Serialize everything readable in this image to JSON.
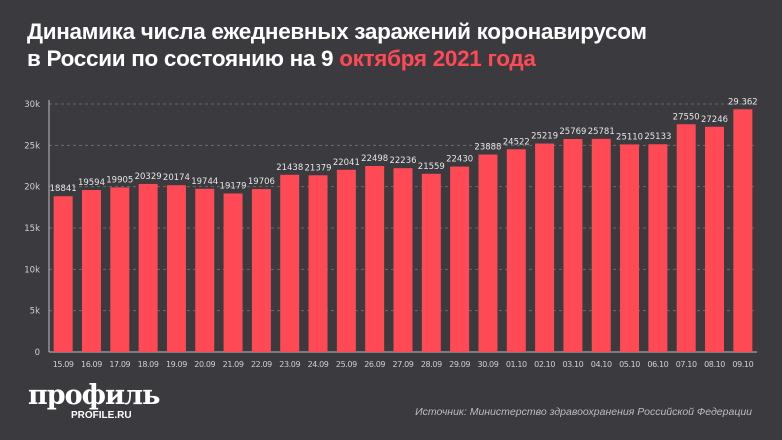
{
  "title": {
    "line1": "Динамика числа ежедневных заражений коронавирусом",
    "line2_prefix": "в России по состоянию на 9 ",
    "line2_highlight": "октября 2021 года"
  },
  "colors": {
    "background": "#3b3a3f",
    "bar": "#ff4a55",
    "highlight": "#ff4a55"
  },
  "chart_data": {
    "type": "bar",
    "categories": [
      "15.09",
      "16.09",
      "17.09",
      "18.09",
      "19.09",
      "20.09",
      "21.09",
      "22.09",
      "23.09",
      "24.09",
      "25.09",
      "26.09",
      "27.09",
      "28.09",
      "29.09",
      "30.09",
      "01.10",
      "02.10",
      "03.10",
      "04.10",
      "05.10",
      "06.10",
      "07.10",
      "08.10",
      "09.10"
    ],
    "values": [
      18841,
      19594,
      19905,
      20329,
      20174,
      19744,
      19179,
      19706,
      21438,
      21379,
      22041,
      22498,
      22236,
      21559,
      22430,
      23888,
      24522,
      25219,
      25769,
      25781,
      25110,
      25133,
      27550,
      27246,
      29362
    ],
    "data_labels": [
      "18841",
      "19594",
      "19905",
      "20329",
      "20174",
      "19744",
      "19179",
      "19706",
      "21438",
      "21379",
      "22041",
      "22498",
      "22236",
      "21559",
      "22430",
      "23888",
      "24522",
      "25219",
      "25769",
      "25781",
      "25110",
      "25133",
      "27550",
      "27246",
      "29 362"
    ],
    "ylim": [
      0,
      30000
    ],
    "yticks": [
      0,
      5000,
      10000,
      15000,
      20000,
      25000,
      30000
    ],
    "ytick_labels": [
      "0",
      "5k",
      "10k",
      "15k",
      "20k",
      "25k",
      "30k"
    ],
    "grid": true,
    "xlabel": "",
    "ylabel": ""
  },
  "logo": {
    "name": "профиль",
    "site": "PROFILE.RU"
  },
  "source": "Источник: Министерство здравоохранения Российской Федерации"
}
